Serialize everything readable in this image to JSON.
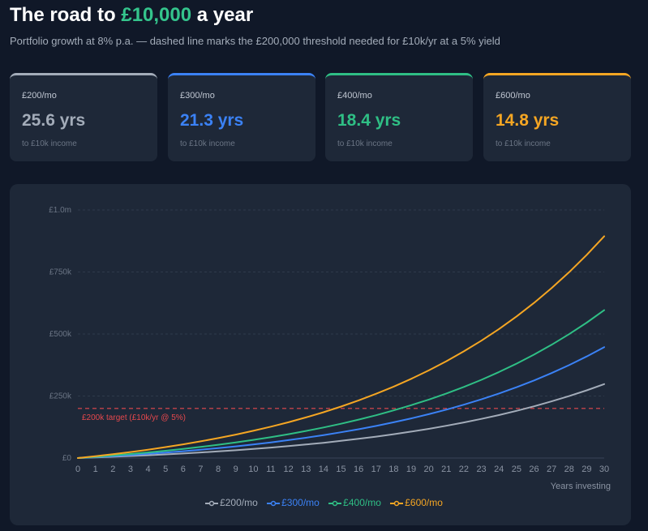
{
  "header": {
    "title_prefix": "The road to ",
    "title_accent": "£10,000",
    "title_suffix": " a year",
    "subtitle": "Portfolio growth at 8% p.a. — dashed line marks the £200,000 threshold needed for £10k/yr at a 5% yield",
    "accent_color": "#34c48c"
  },
  "cards": [
    {
      "label": "£200/mo",
      "value": "25.6 yrs",
      "note": "to £10k income",
      "color": "#a3acb9"
    },
    {
      "label": "£300/mo",
      "value": "21.3 yrs",
      "note": "to £10k income",
      "color": "#3b82f6"
    },
    {
      "label": "£400/mo",
      "value": "18.4 yrs",
      "note": "to £10k income",
      "color": "#2fbf85"
    },
    {
      "label": "£600/mo",
      "value": "14.8 yrs",
      "note": "to £10k income",
      "color": "#f5a623"
    }
  ],
  "chart_data": {
    "type": "line",
    "title": "",
    "xlabel": "Years investing",
    "ylabel": "",
    "xlim": [
      0,
      30
    ],
    "ylim": [
      0,
      1000000
    ],
    "x_ticks": [
      0,
      1,
      2,
      3,
      4,
      5,
      6,
      7,
      8,
      9,
      10,
      11,
      12,
      13,
      14,
      15,
      16,
      17,
      18,
      19,
      20,
      21,
      22,
      23,
      24,
      25,
      26,
      27,
      28,
      29,
      30
    ],
    "y_ticks": [
      0,
      250000,
      500000,
      750000,
      1000000
    ],
    "y_tick_labels": [
      "£0",
      "£250k",
      "£500k",
      "£750k",
      "£1.0m"
    ],
    "grid": "horizontal dashed",
    "legend_position": "bottom-center",
    "x": [
      0,
      1,
      2,
      3,
      4,
      5,
      6,
      7,
      8,
      9,
      10,
      11,
      12,
      13,
      14,
      15,
      16,
      17,
      18,
      19,
      20,
      21,
      22,
      23,
      24,
      25,
      26,
      27,
      28,
      29,
      30
    ],
    "series": [
      {
        "name": "£200/mo",
        "color": "#a3acb9",
        "values": [
          0,
          2490,
          5186,
          8105,
          11266,
          14690,
          18398,
          22414,
          26764,
          31475,
          36578,
          42103,
          48088,
          54569,
          61588,
          69191,
          77424,
          86342,
          96000,
          106459,
          117787,
          130056,
          143343,
          157733,
          173318,
          190196,
          208476,
          228274,
          249716,
          272937,
          298086
        ]
      },
      {
        "name": "£300/mo",
        "color": "#3b82f6",
        "values": [
          0,
          3735,
          7780,
          12158,
          16900,
          22035,
          27597,
          33621,
          40145,
          47212,
          54867,
          63154,
          72131,
          81852,
          92382,
          103786,
          116137,
          129514,
          144000,
          159689,
          176681,
          195084,
          215015,
          236600,
          259977,
          285294,
          312713,
          342411,
          374574,
          409405,
          447129
        ]
      },
      {
        "name": "£400/mo",
        "color": "#2fbf85",
        "values": [
          0,
          4980,
          10373,
          16210,
          22533,
          29380,
          36797,
          44828,
          53527,
          62949,
          73156,
          84205,
          96175,
          109137,
          123176,
          138382,
          154849,
          172685,
          192000,
          212919,
          235575,
          260112,
          286687,
          315467,
          346636,
          380392,
          416951,
          456548,
          499432,
          545873,
          596172
        ]
      },
      {
        "name": "£600/mo",
        "color": "#f5a623",
        "values": [
          0,
          7470,
          15559,
          24315,
          33799,
          44070,
          55195,
          67242,
          80290,
          94424,
          109734,
          126308,
          144263,
          163705,
          184764,
          207572,
          232274,
          259027,
          288000,
          319379,
          353362,
          390168,
          430030,
          473200,
          519954,
          570588,
          625427,
          684822,
          749148,
          818810,
          894258
        ]
      }
    ],
    "threshold": {
      "value": 200000,
      "label": "£200k target (£10k/yr @ 5%)",
      "color": "#e5484d"
    }
  }
}
